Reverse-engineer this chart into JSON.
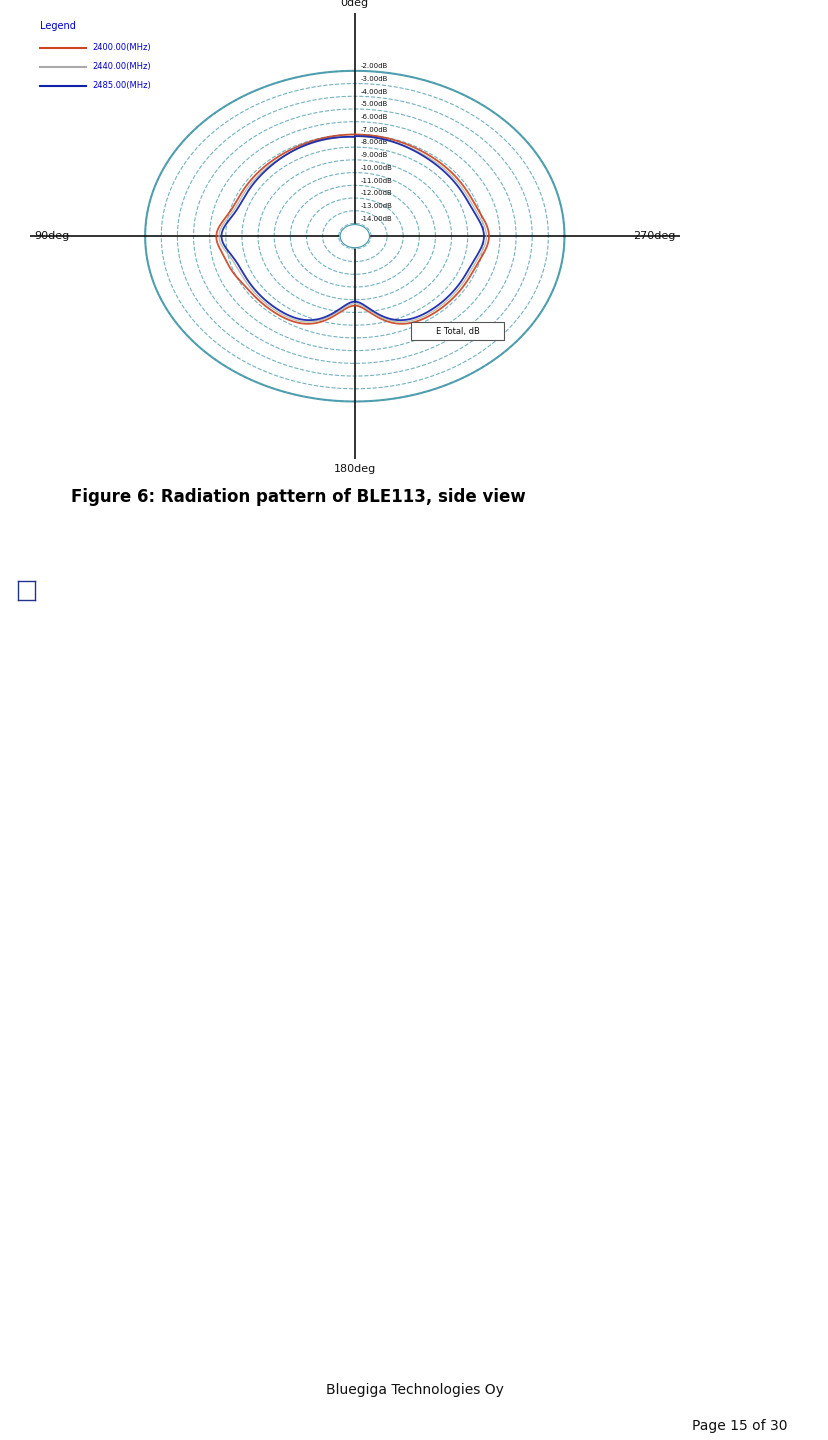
{
  "title": "Figure 6: Radiation pattern of BLE113, side view",
  "page_bg": "#ffffff",
  "plot_bg": "#cceecc",
  "grid_color": "#4499aa",
  "axis_color": "#223399",
  "label_0deg": "0deg",
  "label_90deg": "90deg",
  "label_180deg": "180deg",
  "label_270deg": "270deg",
  "radial_labels": [
    "-2.00dB",
    "-3.00dB",
    "-4.00dB",
    "-5.00dB",
    "-6.00dB",
    "-7.00dB",
    "-8.00dB",
    "-9.00dB",
    "-10.00dB",
    "-11.00dB",
    "-12.00dB",
    "-13.00dB",
    "-14.00dB"
  ],
  "legend_title": "Legend",
  "legend_entries": [
    "2400.00(MHz)",
    "2440.00(MHz)",
    "2485.00(MHz)"
  ],
  "legend_colors": [
    "#cc4422",
    "#aaaaaa",
    "#1122aa"
  ],
  "etotal_label": "E Total, dB",
  "freq1_color": "#cc4422",
  "freq2_color": "#bbbbaa",
  "freq3_color": "#1122aa",
  "footer_company": "Bluegiga Technologies Oy",
  "footer_page": "Page 15 of 30",
  "scrollbar_green": "#00bb44",
  "scrollbar_gray": "#aaaaaa",
  "scrollbar_blue": "#4466bb",
  "scrollbar_darkblue": "#223388"
}
